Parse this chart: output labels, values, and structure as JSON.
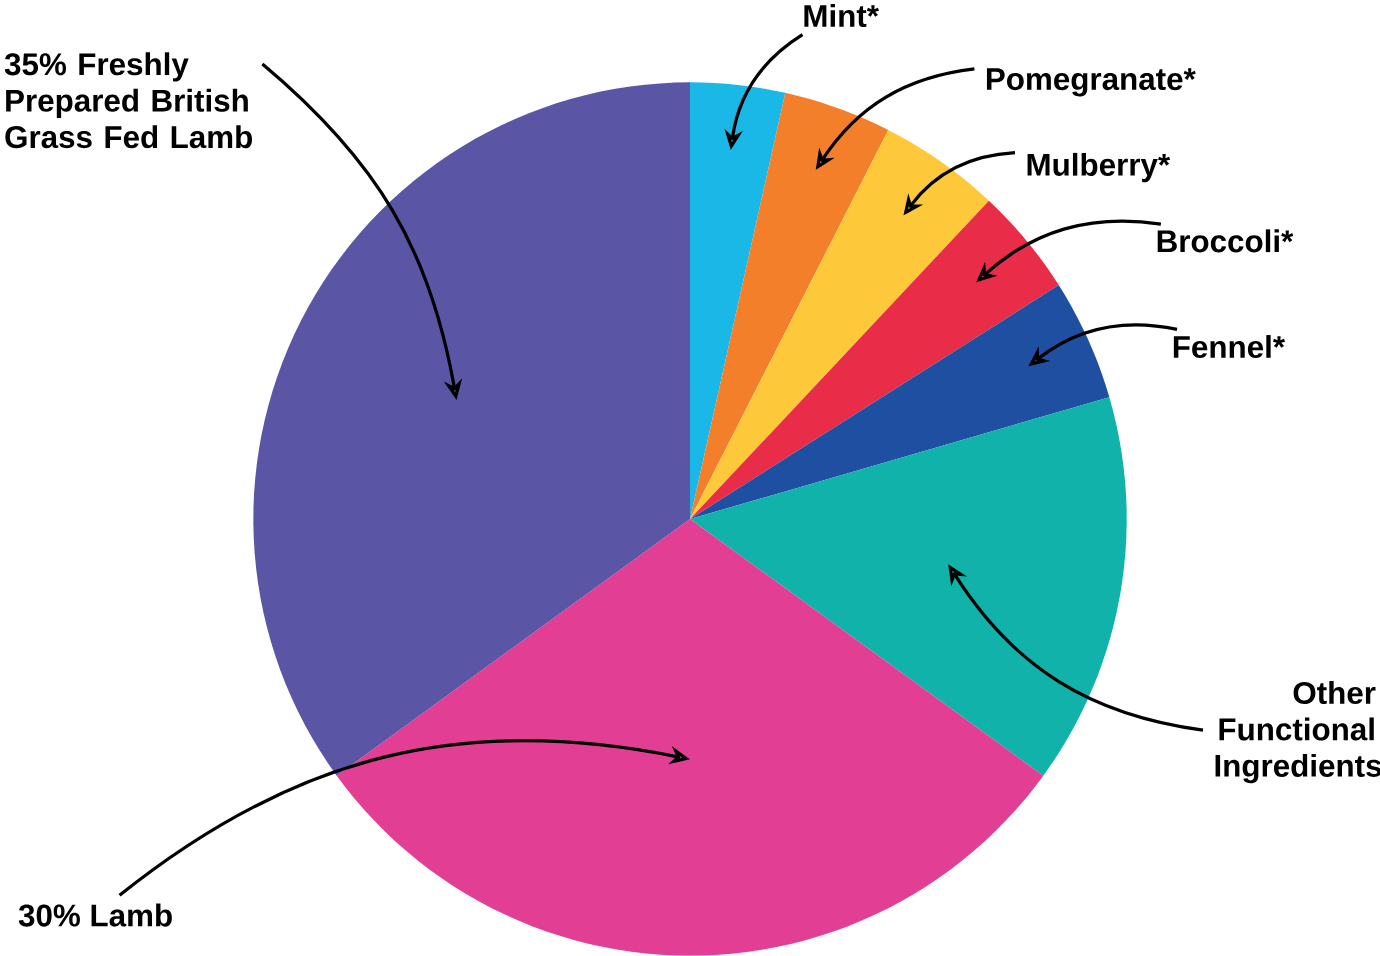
{
  "chart_data": {
    "type": "pie",
    "categories": [
      "Mint*",
      "Pomegranate*",
      "Mulberry*",
      "Broccoli*",
      "Fennel*",
      "Other Functional Ingredients",
      "30% Lamb",
      "35% Freshly Prepared British Grass Fed Lamb"
    ],
    "values": [
      3.5,
      4,
      4.5,
      4,
      4.5,
      14.5,
      30,
      35
    ],
    "colors": [
      "#1ab8e6",
      "#f47f2a",
      "#fdc93a",
      "#e92c48",
      "#1f4fa0",
      "#10b2aa",
      "#e23e93",
      "#5a55a5"
    ]
  }
}
